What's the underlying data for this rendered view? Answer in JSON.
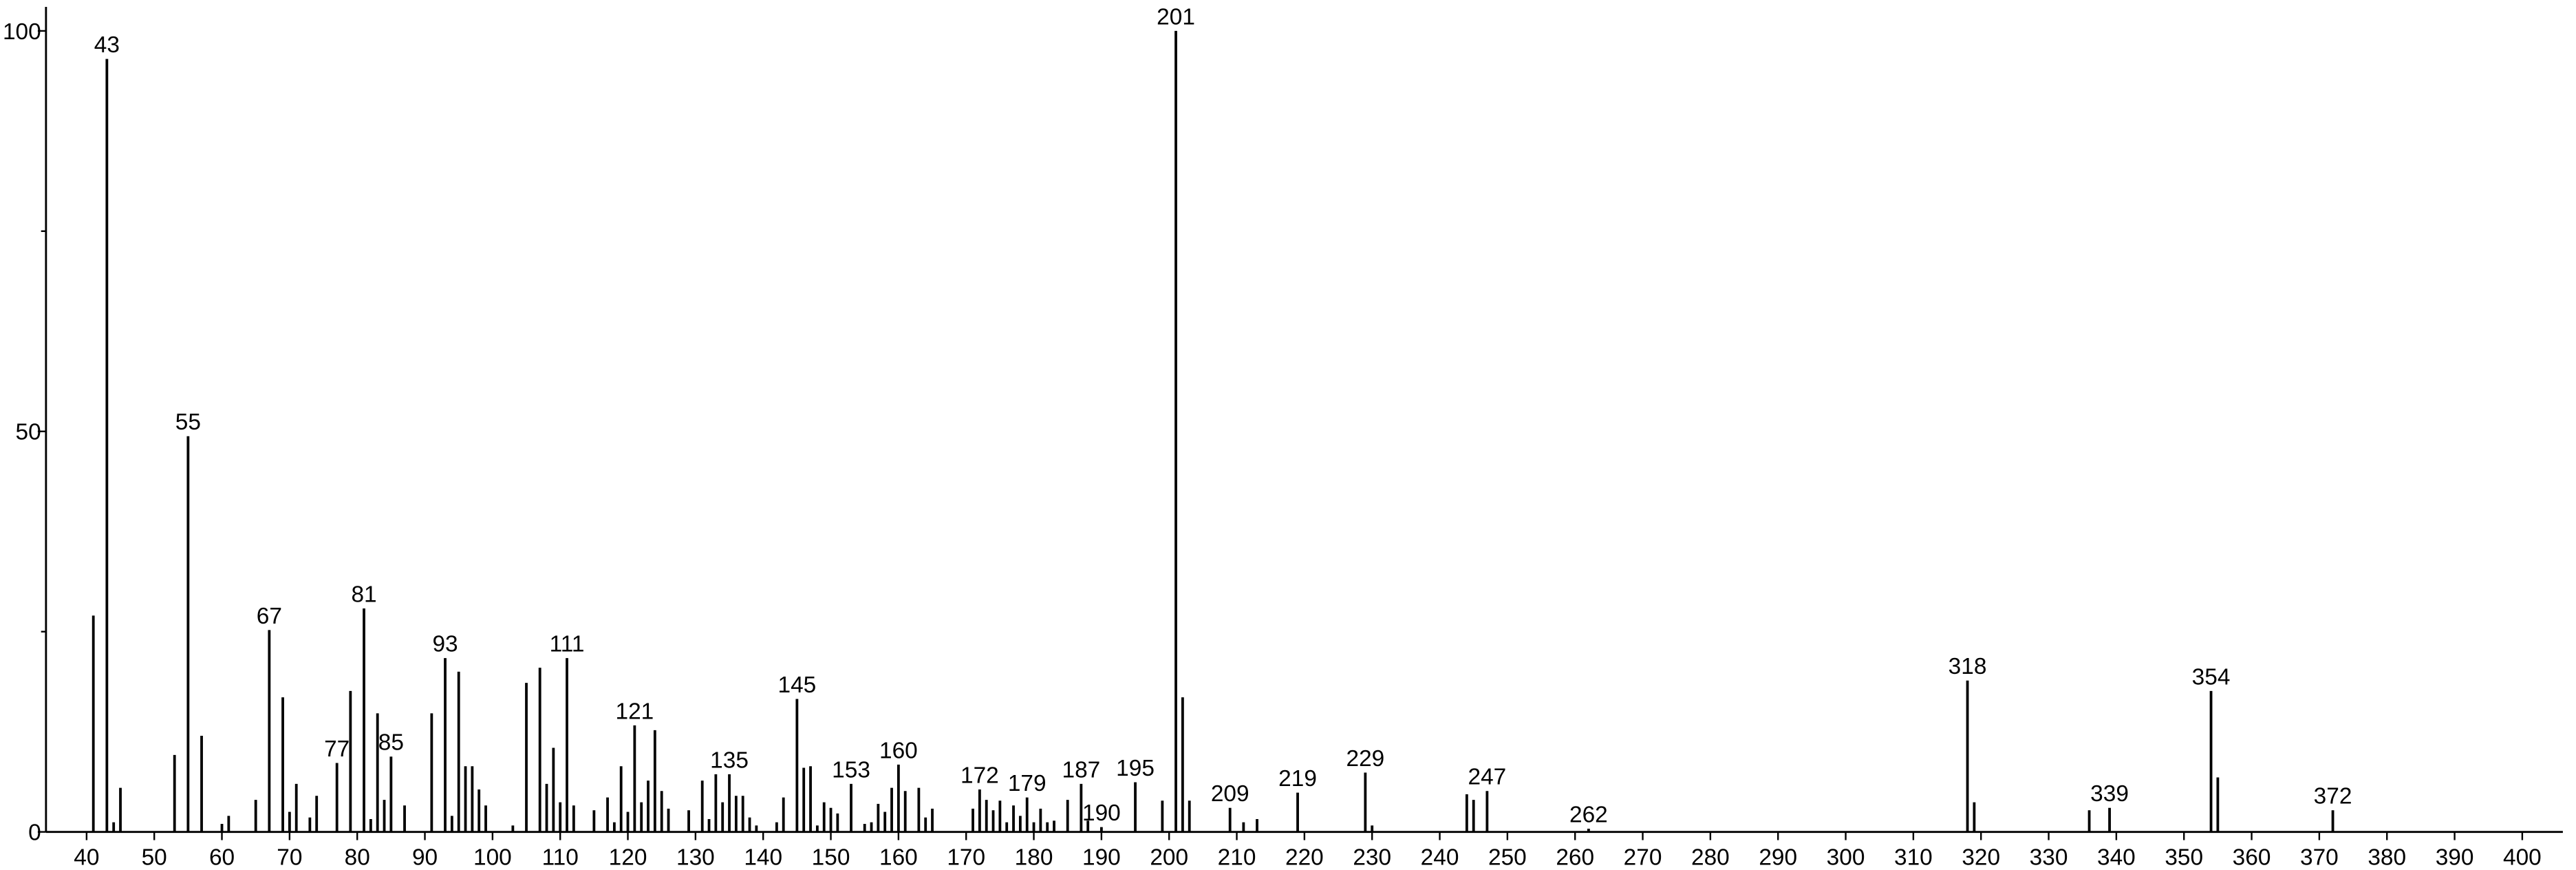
{
  "chart_data": {
    "type": "bar",
    "color": "#000000",
    "x": [
      41,
      43,
      44,
      45,
      53,
      55,
      57,
      60,
      61,
      65,
      67,
      69,
      70,
      71,
      73,
      74,
      77,
      79,
      81,
      82,
      83,
      84,
      85,
      87,
      91,
      93,
      94,
      95,
      96,
      97,
      98,
      99,
      103,
      105,
      107,
      108,
      109,
      110,
      111,
      112,
      115,
      117,
      118,
      119,
      120,
      121,
      122,
      123,
      124,
      125,
      126,
      129,
      131,
      132,
      133,
      134,
      135,
      136,
      137,
      138,
      139,
      142,
      143,
      145,
      146,
      147,
      148,
      149,
      150,
      151,
      153,
      155,
      156,
      157,
      158,
      159,
      160,
      161,
      163,
      164,
      165,
      171,
      172,
      173,
      174,
      175,
      176,
      177,
      178,
      179,
      180,
      181,
      182,
      183,
      185,
      187,
      188,
      190,
      195,
      199,
      201,
      202,
      203,
      209,
      211,
      213,
      219,
      229,
      230,
      244,
      245,
      247,
      262,
      318,
      319,
      336,
      339,
      354,
      355,
      372
    ],
    "values": [
      27,
      96.5,
      1.2,
      5.5,
      9.6,
      49.4,
      12,
      1,
      2,
      4,
      25.2,
      16.8,
      2.5,
      6,
      1.8,
      4.5,
      8.6,
      17.6,
      27.9,
      1.6,
      14.8,
      4,
      9.4,
      3.3,
      14.8,
      21.7,
      2,
      20,
      8.2,
      8.2,
      5.3,
      3.3,
      0.8,
      18.6,
      20.5,
      6,
      10.5,
      3.7,
      21.7,
      3.3,
      2.7,
      4.3,
      1.2,
      8.2,
      2.5,
      13.3,
      3.7,
      6.4,
      12.7,
      5.1,
      2.9,
      2.7,
      6.4,
      1.6,
      7.2,
      3.7,
      7.2,
      4.5,
      4.5,
      1.8,
      0.8,
      1.2,
      4.3,
      16.6,
      8,
      8.2,
      0.8,
      3.7,
      3,
      2.3,
      6,
      1,
      1.2,
      3.5,
      2.5,
      5.5,
      8.4,
      5.1,
      5.5,
      1.8,
      2.9,
      2.9,
      5.3,
      4,
      2.7,
      3.9,
      1.2,
      3.3,
      2,
      4.3,
      1.2,
      2.9,
      1.2,
      1.4,
      4,
      6,
      1.4,
      0.6,
      6.2,
      3.9,
      100,
      16.8,
      3.9,
      3,
      1.2,
      1.6,
      4.9,
      7.4,
      0.8,
      4.7,
      4,
      5.1,
      0.4,
      18.9,
      3.7,
      2.7,
      3,
      17.6,
      6.8,
      2.7
    ],
    "point_labels": [
      null,
      "43",
      null,
      null,
      null,
      "55",
      null,
      null,
      null,
      null,
      "67",
      null,
      null,
      null,
      null,
      null,
      "77",
      null,
      "81",
      null,
      null,
      null,
      "85",
      null,
      null,
      "93",
      null,
      null,
      null,
      null,
      null,
      null,
      null,
      null,
      null,
      null,
      null,
      null,
      "111",
      null,
      null,
      null,
      null,
      null,
      null,
      "121",
      null,
      null,
      null,
      null,
      null,
      null,
      null,
      null,
      null,
      null,
      "135",
      null,
      null,
      null,
      null,
      null,
      null,
      "145",
      null,
      null,
      null,
      null,
      null,
      null,
      "153",
      null,
      null,
      null,
      null,
      null,
      "160",
      null,
      null,
      null,
      null,
      null,
      "172",
      null,
      null,
      null,
      null,
      null,
      null,
      "179",
      null,
      null,
      null,
      null,
      null,
      "187",
      null,
      "190",
      "195",
      null,
      "201",
      null,
      null,
      "209",
      null,
      null,
      "219",
      "229",
      null,
      null,
      null,
      "247",
      "262",
      "318",
      null,
      null,
      "339",
      "354",
      null,
      "372"
    ],
    "xlim": [
      34,
      406
    ],
    "ylim": [
      0,
      103
    ],
    "xticks": [
      40,
      50,
      60,
      70,
      80,
      90,
      100,
      110,
      120,
      130,
      140,
      150,
      160,
      170,
      180,
      190,
      200,
      210,
      220,
      230,
      240,
      250,
      260,
      270,
      280,
      290,
      300,
      310,
      320,
      330,
      340,
      350,
      360,
      370,
      380,
      390,
      400
    ],
    "yticks": [
      0,
      50,
      100
    ],
    "yminorticks": [
      25,
      75
    ]
  }
}
